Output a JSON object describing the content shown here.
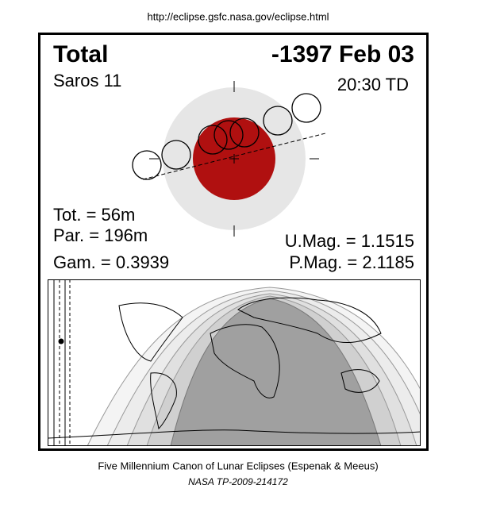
{
  "url": "http://eclipse.gsfc.nasa.gov/eclipse.html",
  "header": {
    "type": "Total",
    "date": "-1397 Feb 03",
    "saros": "Saros  11",
    "time": "20:30 TD"
  },
  "stats": {
    "tot": "Tot. =  56m",
    "par": "Par. = 196m",
    "gam": "Gam. = 0.3939",
    "umag": "U.Mag. = 1.1515",
    "pmag": "P.Mag. = 2.1185"
  },
  "footer": {
    "line1": "Five Millennium Canon of Lunar Eclipses (Espenak & Meeus)",
    "line2": "NASA TP-2009-214172"
  }
}
